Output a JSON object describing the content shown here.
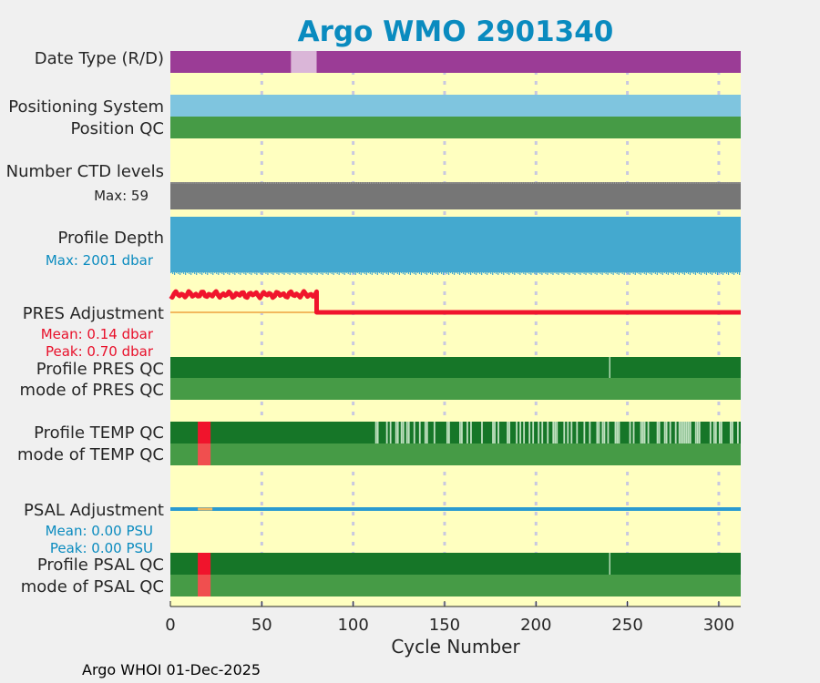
{
  "title": "Argo WMO 2901340",
  "footer": "Argo WHOI 01-Dec-2025",
  "colors": {
    "title": "#0a8bbf",
    "background": "#ffffc0",
    "figure_bg": "#f0f0f0",
    "purple": "#9b3c96",
    "light_purple": "#dab6d8",
    "sky_blue": "#7fc5df",
    "green": "#469b46",
    "dark_green": "#167628",
    "pale_green": "#bfe0bf",
    "gray": "#767676",
    "depth_blue": "#44a9cf",
    "red": "#f0142c",
    "salmon": "#f04f4f",
    "orange_line": "#f2b95e",
    "psal_blue": "#2a9bd0",
    "grid": "#c8c8e0"
  },
  "row_labels": {
    "date_type": "Date Type (R/D)",
    "positioning_system": "Positioning System",
    "position_qc": "Position QC",
    "ctd_levels": "Number CTD levels",
    "ctd_max": "Max: 59",
    "profile_depth": "Profile Depth",
    "depth_max": "Max: 2001 dbar",
    "pres_adjustment": "PRES Adjustment",
    "pres_mean": "Mean: 0.14 dbar",
    "pres_peak": "Peak: 0.70 dbar",
    "profile_pres_qc": "Profile PRES QC",
    "mode_pres_qc": "mode of PRES QC",
    "profile_temp_qc": "Profile TEMP QC",
    "mode_temp_qc": "mode of TEMP QC",
    "psal_adjustment": "PSAL Adjustment",
    "psal_mean": "Mean: 0.00 PSU",
    "psal_peak": "Peak: 0.00 PSU",
    "profile_psal_qc": "Profile PSAL QC",
    "mode_psal_qc": "mode of PSAL QC"
  },
  "chart_data": {
    "type": "bar",
    "xlabel": "Cycle Number",
    "ylabel": "",
    "xlim": [
      0,
      312
    ],
    "xticks": [
      0,
      50,
      100,
      150,
      200,
      250,
      300
    ],
    "grid": true,
    "date_type": {
      "delayed_mode_cycles": [
        [
          0,
          66
        ],
        [
          80,
          312
        ]
      ],
      "realtime_cycles": [
        [
          66,
          80
        ]
      ]
    },
    "ctd_levels_max": 59,
    "profile_depth_max_dbar": 2001,
    "pres_adjustment_mean_dbar": 0.14,
    "pres_adjustment_peak_dbar": 0.7,
    "pres_adjustment_series": {
      "early_cycles": [
        0,
        80
      ],
      "early_level_dbar": 0.65,
      "late_level_dbar": 0.0
    },
    "profile_pres_qc": {
      "marker_cycles": [
        240
      ]
    },
    "profile_temp_qc": {
      "red_cycles": [
        [
          15,
          22
        ]
      ],
      "mixed_quality_from_cycle": 112
    },
    "mode_temp_qc": {
      "red_cycles": [
        [
          15,
          22
        ]
      ]
    },
    "psal_adjustment_mean_psu": 0.0,
    "psal_adjustment_peak_psu": 0.0,
    "profile_psal_qc": {
      "red_cycles": [
        [
          15,
          22
        ]
      ],
      "marker_cycles": [
        240
      ]
    },
    "mode_psal_qc": {
      "red_cycles": [
        [
          15,
          22
        ]
      ]
    }
  }
}
